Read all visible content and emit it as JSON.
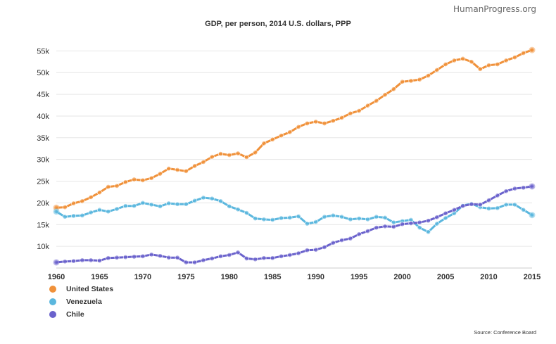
{
  "brand": "HumanProgress.org",
  "source": "Source: Conference Board",
  "chart_data": {
    "type": "line",
    "title": "GDP, per person, 2014 U.S. dollars, PPP",
    "xlabel": "",
    "ylabel": "",
    "xlim": [
      1960,
      2015
    ],
    "ylim": [
      5000,
      57000
    ],
    "grid": true,
    "legend_position": "bottom-left",
    "x_ticks": [
      1960,
      1965,
      1970,
      1975,
      1980,
      1985,
      1990,
      1995,
      2000,
      2005,
      2010,
      2015
    ],
    "x_tick_labels": [
      "1960",
      "1965",
      "1970",
      "1975",
      "1980",
      "1985",
      "1990",
      "1995",
      "2000",
      "2005",
      "2010",
      "2015"
    ],
    "y_ticks": [
      10000,
      15000,
      20000,
      25000,
      30000,
      35000,
      40000,
      45000,
      50000,
      55000
    ],
    "y_tick_labels": [
      "10k",
      "15k",
      "20k",
      "25k",
      "30k",
      "35k",
      "40k",
      "45k",
      "50k",
      "55k"
    ],
    "x": [
      1960,
      1961,
      1962,
      1963,
      1964,
      1965,
      1966,
      1967,
      1968,
      1969,
      1970,
      1971,
      1972,
      1973,
      1974,
      1975,
      1976,
      1977,
      1978,
      1979,
      1980,
      1981,
      1982,
      1983,
      1984,
      1985,
      1986,
      1987,
      1988,
      1989,
      1990,
      1991,
      1992,
      1993,
      1994,
      1995,
      1996,
      1997,
      1998,
      1999,
      2000,
      2001,
      2002,
      2003,
      2004,
      2005,
      2006,
      2007,
      2008,
      2009,
      2010,
      2011,
      2012,
      2013,
      2014,
      2015
    ],
    "series": [
      {
        "name": "United States",
        "color": "#f0913a",
        "values": [
          18900,
          19000,
          19900,
          20400,
          21300,
          22400,
          23700,
          23900,
          24800,
          25400,
          25200,
          25700,
          26700,
          27900,
          27600,
          27300,
          28500,
          29400,
          30600,
          31300,
          31000,
          31400,
          30500,
          31600,
          33700,
          34600,
          35500,
          36300,
          37500,
          38300,
          38700,
          38300,
          38900,
          39600,
          40600,
          41200,
          42400,
          43500,
          44900,
          46200,
          47900,
          48100,
          48400,
          49300,
          50600,
          51900,
          52800,
          53200,
          52500,
          50800,
          51700,
          51900,
          52800,
          53500,
          54500,
          55200
        ]
      },
      {
        "name": "Venezuela",
        "color": "#5bb7de",
        "values": [
          18000,
          16800,
          17000,
          17100,
          17800,
          18400,
          18000,
          18600,
          19300,
          19300,
          20000,
          19600,
          19200,
          19900,
          19700,
          19700,
          20500,
          21200,
          21000,
          20400,
          19200,
          18500,
          17700,
          16400,
          16200,
          16100,
          16500,
          16600,
          16900,
          15200,
          15600,
          16800,
          17100,
          16800,
          16200,
          16400,
          16200,
          16800,
          16600,
          15500,
          15800,
          16100,
          14300,
          13300,
          15200,
          16500,
          17600,
          19400,
          19800,
          19000,
          18700,
          18800,
          19600,
          19600,
          18400,
          17200
        ]
      },
      {
        "name": "Chile",
        "color": "#6a62cc",
        "values": [
          6300,
          6500,
          6600,
          6800,
          6800,
          6700,
          7300,
          7400,
          7500,
          7600,
          7700,
          8100,
          7800,
          7400,
          7400,
          6300,
          6300,
          6800,
          7200,
          7700,
          8000,
          8600,
          7200,
          7000,
          7300,
          7300,
          7700,
          8000,
          8400,
          9100,
          9200,
          9800,
          10800,
          11400,
          11800,
          12800,
          13500,
          14300,
          14600,
          14500,
          15100,
          15300,
          15500,
          15900,
          16700,
          17600,
          18400,
          19300,
          19700,
          19600,
          20600,
          21700,
          22700,
          23300,
          23500,
          23800
        ]
      }
    ]
  }
}
